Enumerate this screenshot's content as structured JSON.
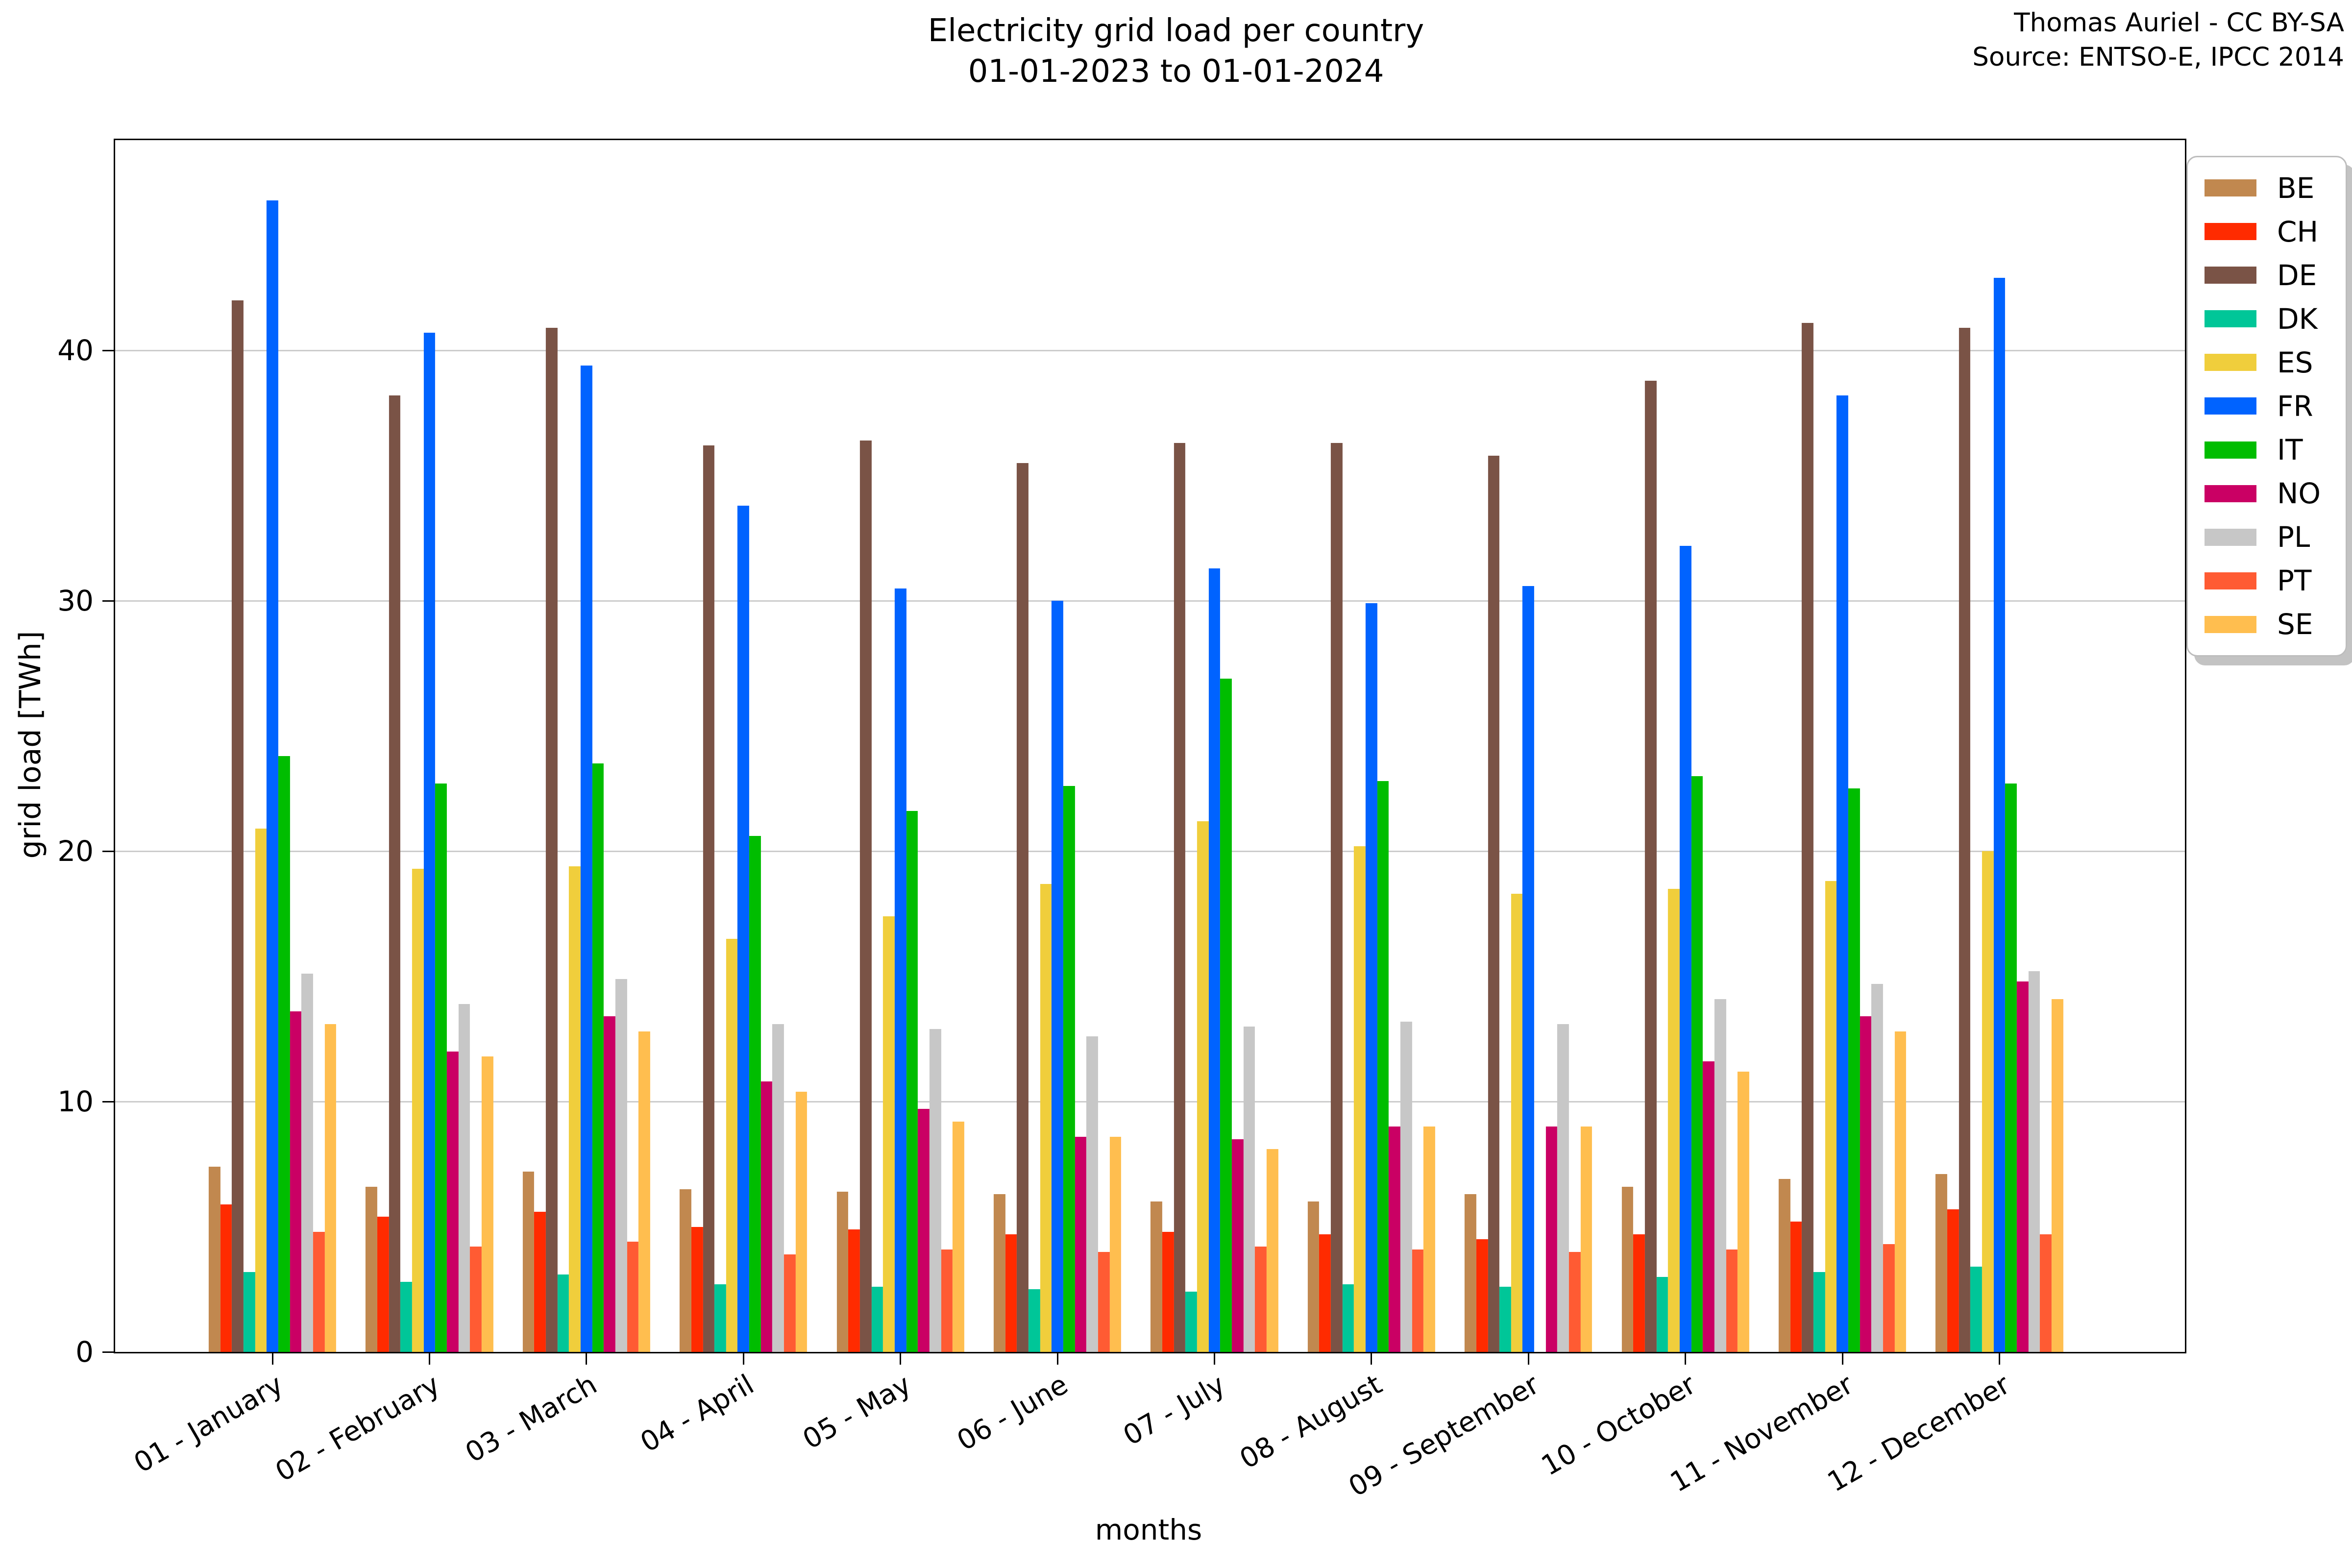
{
  "title": {
    "line1": "Electricity grid load per country",
    "line2": "01-01-2023 to 01-01-2024"
  },
  "attribution": {
    "line1": "Thomas Auriel - CC BY-SA",
    "line2": "Source: ENTSO-E, IPCC 2014"
  },
  "chart_data": {
    "type": "bar",
    "title": "Electricity grid load per country 01-01-2023 to 01-01-2024",
    "xlabel": "months",
    "ylabel": "grid load [TWh]",
    "ylim": [
      0,
      48.4
    ],
    "yticks": [
      0,
      10,
      20,
      30,
      40
    ],
    "grid": "horizontal",
    "legend_position": "outside-right-top",
    "categories": [
      "01 - January",
      "02 - February",
      "03 - March",
      "04 - April",
      "05 - May",
      "06 - June",
      "07 - July",
      "08 - August",
      "09 - September",
      "10 - October",
      "11 - November",
      "12 - December"
    ],
    "series": [
      {
        "name": "BE",
        "color": "#C1884F",
        "values": [
          7.4,
          6.6,
          7.2,
          6.5,
          6.4,
          6.3,
          6.0,
          6.0,
          6.3,
          6.6,
          6.9,
          7.1
        ]
      },
      {
        "name": "CH",
        "color": "#FF2B00",
        "values": [
          5.9,
          5.4,
          5.6,
          5.0,
          4.9,
          4.7,
          4.8,
          4.7,
          4.5,
          4.7,
          5.2,
          5.7
        ]
      },
      {
        "name": "DE",
        "color": "#7A5346",
        "values": [
          42.0,
          38.2,
          40.9,
          36.2,
          36.4,
          35.5,
          36.3,
          36.3,
          35.8,
          38.8,
          41.1,
          40.9
        ]
      },
      {
        "name": "DK",
        "color": "#00C698",
        "values": [
          3.2,
          2.8,
          3.1,
          2.7,
          2.6,
          2.5,
          2.4,
          2.7,
          2.6,
          3.0,
          3.2,
          3.4
        ]
      },
      {
        "name": "ES",
        "color": "#F0CE3C",
        "values": [
          20.9,
          19.3,
          19.4,
          16.5,
          17.4,
          18.7,
          21.2,
          20.2,
          18.3,
          18.5,
          18.8,
          20.0
        ]
      },
      {
        "name": "FR",
        "color": "#0063FF",
        "values": [
          46.0,
          40.7,
          39.4,
          33.8,
          30.5,
          30.0,
          31.3,
          29.9,
          30.6,
          32.2,
          38.2,
          42.9
        ]
      },
      {
        "name": "IT",
        "color": "#00BD00",
        "values": [
          23.8,
          22.7,
          23.5,
          20.6,
          21.6,
          22.6,
          26.9,
          22.8,
          0,
          23.0,
          22.5,
          22.7
        ]
      },
      {
        "name": "NO",
        "color": "#CA0064",
        "values": [
          13.6,
          12.0,
          13.4,
          10.8,
          9.7,
          8.6,
          8.5,
          9.0,
          9.0,
          11.6,
          13.4,
          14.8
        ]
      },
      {
        "name": "PL",
        "color": "#C7C7C7",
        "values": [
          15.1,
          13.9,
          14.9,
          13.1,
          12.9,
          12.6,
          13.0,
          13.2,
          13.1,
          14.1,
          14.7,
          15.2
        ]
      },
      {
        "name": "PT",
        "color": "#FF5B33",
        "values": [
          4.8,
          4.2,
          4.4,
          3.9,
          4.1,
          4.0,
          4.2,
          4.1,
          4.0,
          4.1,
          4.3,
          4.7
        ]
      },
      {
        "name": "SE",
        "color": "#FFBE4F",
        "values": [
          13.1,
          11.8,
          12.8,
          10.4,
          9.2,
          8.6,
          8.1,
          9.0,
          9.0,
          11.2,
          12.8,
          14.1
        ]
      }
    ]
  }
}
